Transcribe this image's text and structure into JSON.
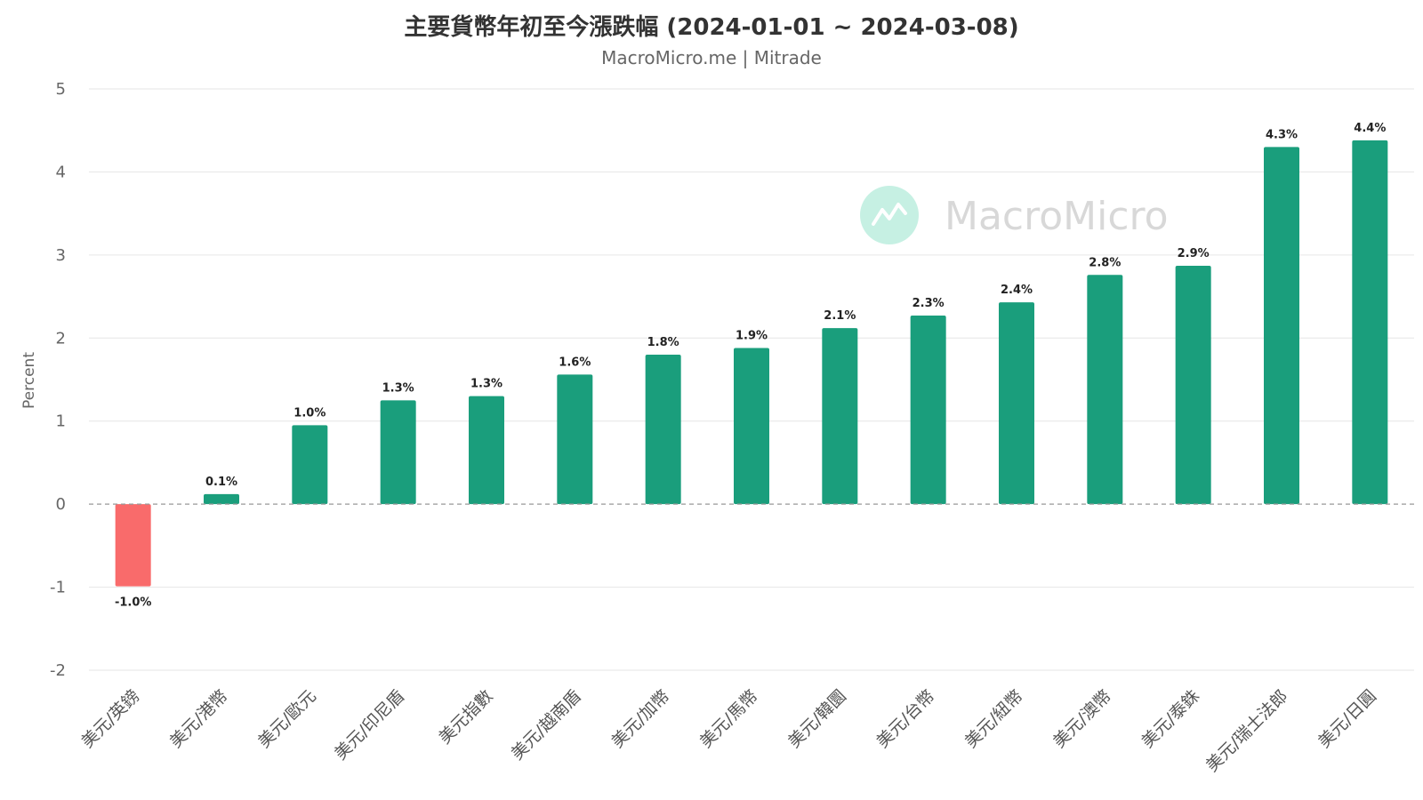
{
  "header": {
    "title": "主要貨幣年初至今漲跌幅 (2024-01-01 ~ 2024-03-08)",
    "subtitle": "MacroMicro.me | Mitrade"
  },
  "watermark": {
    "text": "MacroMicro",
    "icon": "chart-line-icon",
    "color": "#c6f0e3"
  },
  "colors": {
    "positive": "#1a9e7c",
    "negative": "#f96b6b",
    "grid": "#e6e6e6",
    "zero_line": "#999999"
  },
  "chart_data": {
    "type": "bar",
    "title": "主要貨幣年初至今漲跌幅 (2024-01-01 ~ 2024-03-08)",
    "subtitle": "MacroMicro.me | Mitrade",
    "xlabel": "",
    "ylabel": "Percent",
    "ylim": [
      -2,
      5
    ],
    "yticks": [
      5,
      4,
      3,
      2,
      1,
      0,
      -1,
      -2
    ],
    "grid": true,
    "legend": "none",
    "categories": [
      "美元/英鎊",
      "美元/港幣",
      "美元/歐元",
      "美元/印尼盾",
      "美元指數",
      "美元/越南盾",
      "美元/加幣",
      "美元/馬幣",
      "美元/韓圜",
      "美元/台幣",
      "美元/紐幣",
      "美元/澳幣",
      "美元/泰銖",
      "美元/瑞士法郎",
      "美元/日圓"
    ],
    "values": [
      -0.99,
      0.12,
      0.95,
      1.25,
      1.3,
      1.56,
      1.8,
      1.88,
      2.12,
      2.27,
      2.43,
      2.76,
      2.87,
      4.3,
      4.38
    ],
    "labels": [
      "-1.0%",
      "0.1%",
      "1.0%",
      "1.3%",
      "1.3%",
      "1.6%",
      "1.8%",
      "1.9%",
      "2.1%",
      "2.3%",
      "2.4%",
      "2.8%",
      "2.9%",
      "4.3%",
      "4.4%"
    ]
  }
}
